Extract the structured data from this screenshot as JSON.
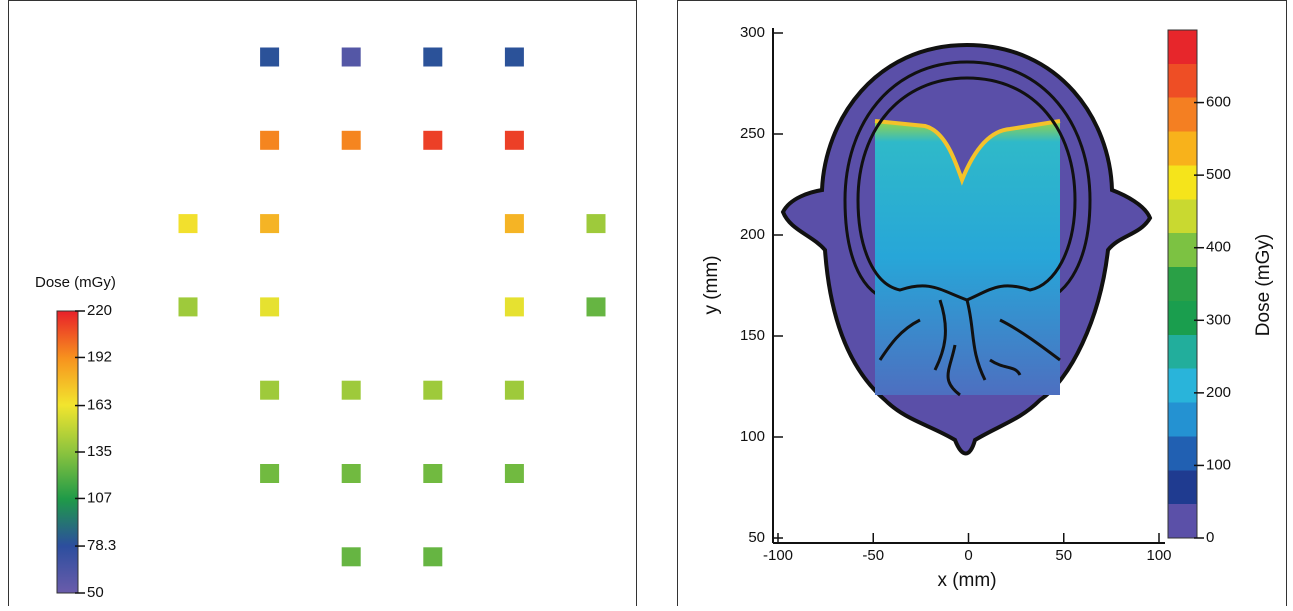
{
  "chart_data": [
    {
      "type": "heatmap",
      "colorbar_label": "Dose (mGy)",
      "clim": [
        50,
        220
      ],
      "cticks": [
        50,
        78.3,
        107,
        135,
        163,
        192,
        220
      ],
      "colorscale": [
        "#6a5cab",
        "#2c4e9e",
        "#1f9a48",
        "#8cc43e",
        "#f2e52e",
        "#f7921e",
        "#e8202a"
      ],
      "values": [
        [
          null,
          80,
          60,
          80,
          80,
          null
        ],
        [
          null,
          195,
          195,
          212,
          212,
          null
        ],
        [
          165,
          180,
          null,
          null,
          180,
          140
        ],
        [
          140,
          160,
          null,
          null,
          160,
          125
        ],
        [
          null,
          140,
          140,
          140,
          140,
          null
        ],
        [
          null,
          128,
          128,
          128,
          128,
          null
        ],
        [
          null,
          null,
          125,
          125,
          null,
          null
        ]
      ]
    },
    {
      "type": "dose-map",
      "xlabel": "x (mm)",
      "ylabel": "y (mm)",
      "xlim": [
        -100,
        100
      ],
      "xticks": [
        -100,
        -50,
        0,
        50,
        100
      ],
      "ylim": [
        50,
        300
      ],
      "yticks": [
        50,
        100,
        150,
        200,
        250,
        300
      ],
      "colorbar_label": "Dose (mGy)",
      "clim": [
        0,
        700
      ],
      "cticks": [
        0,
        100,
        200,
        300,
        400,
        500,
        600
      ],
      "colorscale": [
        "#5b50a8",
        "#1f3b90",
        "#2160b2",
        "#2492d2",
        "#29b4da",
        "#22ae9c",
        "#1a9e4e",
        "#2aa046",
        "#7cc242",
        "#c9d930",
        "#f5e41b",
        "#f8b21b",
        "#f47f22",
        "#ee4e25",
        "#e7262b"
      ]
    }
  ]
}
